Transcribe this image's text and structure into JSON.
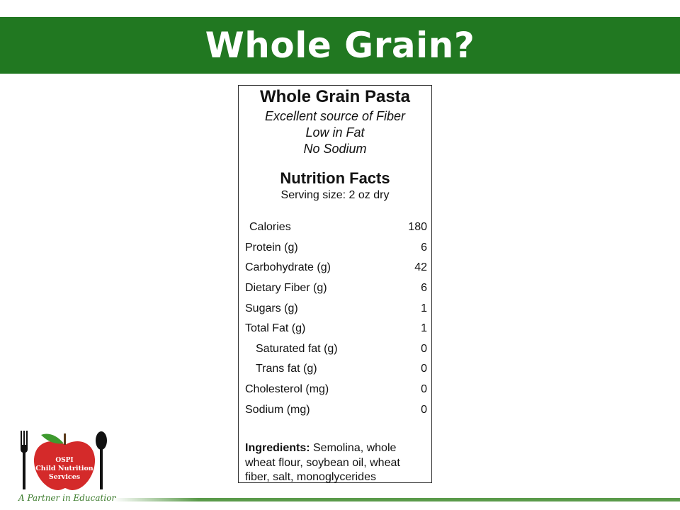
{
  "slide": {
    "title": "Whole Grain?"
  },
  "label": {
    "product_name": "Whole Grain Pasta",
    "claims": [
      "Excellent source of Fiber",
      "Low in Fat",
      "No Sodium"
    ],
    "nutrition_title": "Nutrition Facts",
    "serving_size": "Serving size: 2 oz dry",
    "rows": [
      {
        "name": "Calories",
        "value": "180"
      },
      {
        "name": "Protein (g)",
        "value": "6"
      },
      {
        "name": "Carbohydrate (g)",
        "value": "42"
      },
      {
        "name": "Dietary Fiber (g)",
        "value": "6"
      },
      {
        "name": "Sugars (g)",
        "value": "1"
      },
      {
        "name": "Total Fat (g)",
        "value": "1"
      },
      {
        "name": "Saturated fat (g)",
        "value": "0"
      },
      {
        "name": "Trans fat (g)",
        "value": "0"
      },
      {
        "name": "Cholesterol (mg)",
        "value": "0"
      },
      {
        "name": "Sodium (mg)",
        "value": "0"
      }
    ],
    "ingredients_label": "Ingredients:",
    "ingredients_text": " Semolina, whole wheat flour, soybean oil, wheat fiber, salt, monoglycerides"
  },
  "logo": {
    "line1": "OSPI",
    "line2": "Child Nutrition",
    "line3": "Services",
    "tagline": "A Partner in Education",
    "apple_color": "#d42a2a",
    "leaf_color": "#3e9a2e"
  },
  "colors": {
    "title_bar": "#217821"
  }
}
